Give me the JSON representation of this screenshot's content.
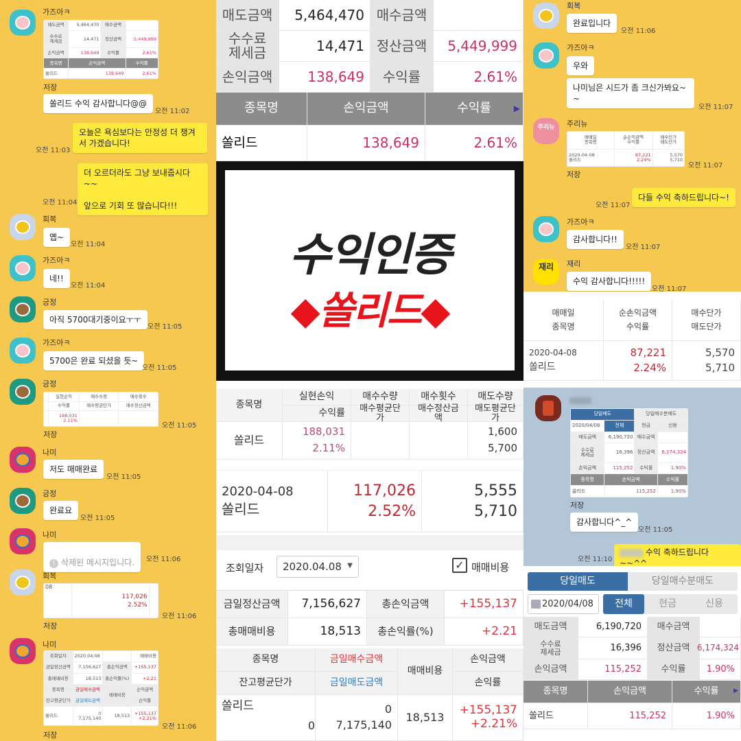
{
  "colors": {
    "chat_bg": "#f6c84f",
    "chat_bg_blue": "#b3c6d8",
    "my_bubble": "#fdea3d",
    "profit_pink": "#cc2f6a",
    "profit_red": "#c0262f",
    "title_red": "#e8141b",
    "tab_blue": "#3a6ea5"
  },
  "sell_summary": {
    "r1": [
      "매도금액",
      "5,464,470",
      "매수금액",
      ""
    ],
    "r2": [
      "수수료\n제세금",
      "14,471",
      "정산금액",
      "5,449,999"
    ],
    "r3": [
      "손익금액",
      "138,649",
      "수익률",
      "2.61%"
    ],
    "head": [
      "종목명",
      "손익금액",
      "수익률"
    ],
    "row": [
      "쏠리드",
      "138,649",
      "2.61%"
    ]
  },
  "banner": {
    "title": "수익인증",
    "subtitle": "◆쏠리드◆"
  },
  "realized": {
    "head_top": [
      "종목명",
      "실현손익",
      "매수수량",
      "매수횟수",
      "매도수량"
    ],
    "head_bottom": [
      "수익률",
      "매수평균단가",
      "매수정산금액",
      "매도평균단가"
    ],
    "row": {
      "name": "쏠리드",
      "profit": "188,031",
      "rate": "2.11%",
      "sell_qty": "1,600",
      "sell_avg": "5,700"
    }
  },
  "daily": {
    "date": "2020-04-08",
    "name": "쏠리드",
    "profit": "117,026",
    "rate": "2.52%",
    "buy_price": "5,555",
    "sell_price": "5,710",
    "date_short": "08"
  },
  "daily_settle": {
    "query_label": "조회일자",
    "query_date": "2020.04.08",
    "fee_checkbox": "매매비용",
    "r1": [
      "금일정산금액",
      "7,156,627",
      "총손익금액",
      "+155,137"
    ],
    "r2": [
      "총매매비용",
      "18,513",
      "총손익률(%)",
      "+2.21"
    ],
    "head": {
      "name": "종목명",
      "avg": "잔고평균단가",
      "buy": "금일매수금액",
      "sell": "금일매도금액",
      "fee": "매매비용",
      "profit": "손익금액",
      "rate": "손익률"
    },
    "row": {
      "name": "쏠리드",
      "buy": "0",
      "qty": "0",
      "sell": "7,175,140",
      "fee": "18,513",
      "profit": "+155,137",
      "rate": "+2.21%"
    }
  },
  "net_profit": {
    "head": [
      "매매일\n종목명",
      "순손익금액\n수익률",
      "매수단가\n매도단가"
    ],
    "date": "2020-04-08",
    "name": "쏠리드",
    "profit": "87,221",
    "rate": "2.24%",
    "buy": "5,570",
    "sell": "5,710"
  },
  "today_sell": {
    "tabs": [
      "당일매도",
      "당일매수분매도"
    ],
    "date": "2020/04/08",
    "filters": [
      "전체",
      "현금",
      "신용"
    ],
    "r1": [
      "매도금액",
      "6,190,720",
      "매수금액",
      ""
    ],
    "r2": [
      "수수료\n제세금",
      "16,396",
      "정산금액",
      "6,174,324"
    ],
    "r3": [
      "손익금액",
      "115,252",
      "수익률",
      "1.90%"
    ],
    "head": [
      "종목명",
      "손익금액",
      "수익률"
    ],
    "row": [
      "쏠리드",
      "115,252",
      "1.90%"
    ]
  },
  "left_chat": {
    "messages": [
      {
        "name": "가즈아ㅋ",
        "save": "저장",
        "text": "쏠리드 수익 감사합니다@@",
        "time": "오전 11:02"
      },
      {
        "text": "오늘은 욕심보다는 안정성 더 챙겨\n서 가겠습니다!",
        "time": "오전 11:03"
      },
      {
        "text": "더 오르더라도 그냥 보내줍시다~~\n\n앞으로 기회 또 많습니다!!!",
        "time": "오전 11:04"
      },
      {
        "name": "회복",
        "text": "옙~",
        "time": "오전 11:04"
      },
      {
        "name": "가즈아ㅋ",
        "text": "네!!",
        "time": "오전 11:04"
      },
      {
        "name": "긍정",
        "text": "아직 5700대기중이요ㅜㅜ",
        "time": "오전 11:05"
      },
      {
        "name": "가즈아ㅋ",
        "text": "5700은 완료 되셨을 듯~",
        "time": "오전 11:05"
      },
      {
        "name": "긍정",
        "save": "저장",
        "time": "오전 11:05"
      },
      {
        "name": "나미",
        "text": "저도 매매완료",
        "time": "오전 11:05"
      },
      {
        "name": "긍정",
        "text": "완료요",
        "time": "오전 11:05"
      },
      {
        "name": "나미",
        "text": "삭제된 메시지입니다.",
        "time": "오전 11:06"
      },
      {
        "name": "회복",
        "save": "저장",
        "time": "오전 11:06"
      },
      {
        "name": "나미",
        "save": "저장",
        "time": "오전 11:06"
      }
    ]
  },
  "right_chat": {
    "messages": [
      {
        "name": "회복",
        "text": "완료입니다",
        "time": "오전 11:06"
      },
      {
        "name": "가즈아ㅋ",
        "text": "우와",
        "text2": "나미님은 시드가 좀 크신가봐요~\n~",
        "time": "오전 11:07"
      },
      {
        "name": "주리뉴",
        "avatar_text": "주리뉴",
        "save": "저장",
        "time": "오전 11:07"
      },
      {
        "text": "다들 수익 축하드립니다~!",
        "time": "오전 11:07"
      },
      {
        "name": "가즈아ㅋ",
        "text": "감사합니다!!",
        "time": "오전 11:07"
      },
      {
        "name": "재리",
        "avatar_text": "재리",
        "text": "수익 감사합니다!!!!!",
        "time": "오전 11:07"
      }
    ]
  },
  "blue_chat": {
    "save": "저장",
    "text": "감사합니다^_^",
    "time": "오전 11:05",
    "my_text": "수익 축하드립니다~~^^",
    "my_time": "오전 11:10"
  }
}
